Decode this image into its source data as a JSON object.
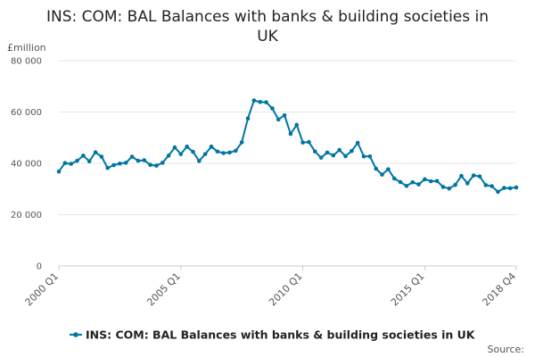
{
  "chart_data": {
    "type": "line",
    "title_line1": "INS: COM: BAL Balances with banks & building societies in",
    "title_line2": "UK",
    "ylabel": "£million",
    "ylim": [
      0,
      80000
    ],
    "yticks": [
      {
        "value": 0,
        "label": "0"
      },
      {
        "value": 20000,
        "label": "20 000"
      },
      {
        "value": 40000,
        "label": "40 000"
      },
      {
        "value": 60000,
        "label": "60 000"
      },
      {
        "value": 80000,
        "label": "80 000"
      }
    ],
    "xticks": [
      {
        "index": 0,
        "label": "2000 Q1"
      },
      {
        "index": 20,
        "label": "2005 Q1"
      },
      {
        "index": 40,
        "label": "2010 Q1"
      },
      {
        "index": 60,
        "label": "2015 Q1"
      },
      {
        "index": 75,
        "label": "2018 Q4"
      }
    ],
    "grid": true,
    "legend_position": "bottom",
    "series": [
      {
        "name": "INS: COM: BAL Balances with banks & building societies in UK",
        "color": "#0075a3",
        "x": [
          "2000 Q1",
          "2000 Q2",
          "2000 Q3",
          "2000 Q4",
          "2001 Q1",
          "2001 Q2",
          "2001 Q3",
          "2001 Q4",
          "2002 Q1",
          "2002 Q2",
          "2002 Q3",
          "2002 Q4",
          "2003 Q1",
          "2003 Q2",
          "2003 Q3",
          "2003 Q4",
          "2004 Q1",
          "2004 Q2",
          "2004 Q3",
          "2004 Q4",
          "2005 Q1",
          "2005 Q2",
          "2005 Q3",
          "2005 Q4",
          "2006 Q1",
          "2006 Q2",
          "2006 Q3",
          "2006 Q4",
          "2007 Q1",
          "2007 Q2",
          "2007 Q3",
          "2007 Q4",
          "2008 Q1",
          "2008 Q2",
          "2008 Q3",
          "2008 Q4",
          "2009 Q1",
          "2009 Q2",
          "2009 Q3",
          "2009 Q4",
          "2010 Q1",
          "2010 Q2",
          "2010 Q3",
          "2010 Q4",
          "2011 Q1",
          "2011 Q2",
          "2011 Q3",
          "2011 Q4",
          "2012 Q1",
          "2012 Q2",
          "2012 Q3",
          "2012 Q4",
          "2013 Q1",
          "2013 Q2",
          "2013 Q3",
          "2013 Q4",
          "2014 Q1",
          "2014 Q2",
          "2014 Q3",
          "2014 Q4",
          "2015 Q1",
          "2015 Q2",
          "2015 Q3",
          "2015 Q4",
          "2016 Q1",
          "2016 Q2",
          "2016 Q3",
          "2016 Q4",
          "2017 Q1",
          "2017 Q2",
          "2017 Q3",
          "2017 Q4",
          "2018 Q1",
          "2018 Q2",
          "2018 Q3",
          "2018 Q4"
        ],
        "values": [
          36800,
          40100,
          39800,
          41000,
          43000,
          40800,
          44300,
          42600,
          38200,
          39300,
          39900,
          40200,
          42600,
          41000,
          41200,
          39400,
          39100,
          40200,
          43000,
          46200,
          43600,
          46500,
          44500,
          40900,
          43600,
          46500,
          44600,
          44000,
          44200,
          44900,
          48200,
          57500,
          64500,
          63900,
          63800,
          61400,
          57100,
          58700,
          51500,
          55000,
          48100,
          48300,
          44600,
          42200,
          44200,
          43100,
          45200,
          42800,
          44800,
          48000,
          42700,
          42700,
          37900,
          35600,
          37700,
          34100,
          32700,
          31200,
          32600,
          31800,
          33800,
          33000,
          33100,
          30800,
          30200,
          31600,
          35100,
          32200,
          35300,
          34900,
          31500,
          31100,
          28900,
          30400,
          30300,
          30600
        ]
      }
    ],
    "source_label": "Source:"
  }
}
